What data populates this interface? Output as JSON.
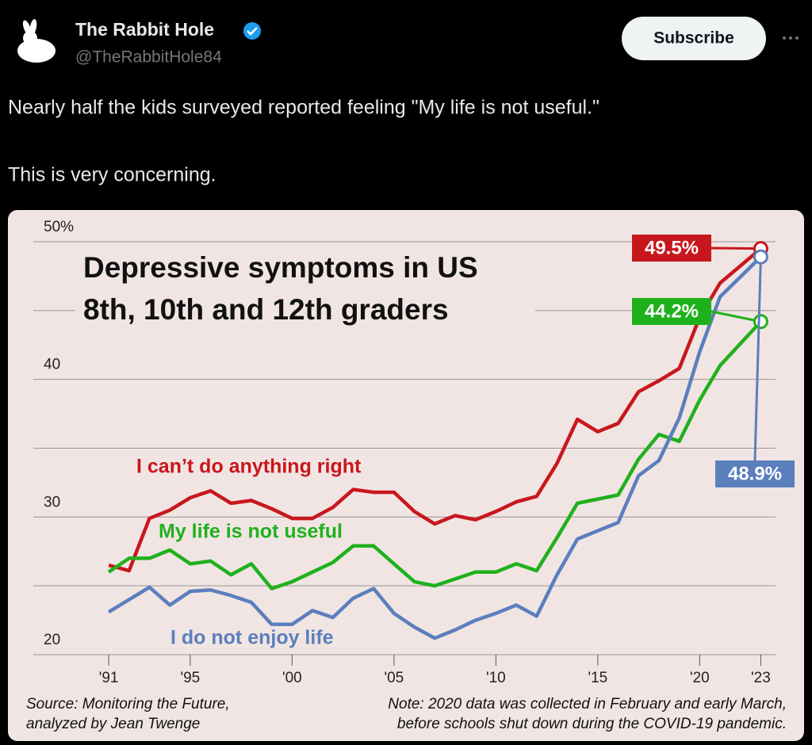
{
  "post": {
    "author": "The Rabbit Hole",
    "handle": "@TheRabbitHole84",
    "button": "Subscribe",
    "text": [
      "Nearly half the kids surveyed reported feeling \"My life is not useful.\"",
      "This is very concerning."
    ]
  },
  "chart_data": {
    "type": "line",
    "title": [
      "Depressive symptoms in US",
      "8th, 10th and 12th graders"
    ],
    "source": [
      "Source: Monitoring the Future,",
      "analyzed by Jean Twenge"
    ],
    "note": [
      "Note: 2020 data was collected in February and early March,",
      "before schools shut down during the COVID-19 pandemic."
    ],
    "x": [
      1991,
      1992,
      1993,
      1994,
      1995,
      1996,
      1997,
      1998,
      1999,
      2000,
      2001,
      2002,
      2003,
      2004,
      2005,
      2006,
      2007,
      2008,
      2009,
      2010,
      2011,
      2012,
      2013,
      2014,
      2015,
      2016,
      2017,
      2018,
      2019,
      2020,
      2021,
      2023
    ],
    "series": [
      {
        "name": "I can’t do anything right",
        "color": "#c8171c",
        "values": [
          26.5,
          26.1,
          29.9,
          30.5,
          31.4,
          31.9,
          31.0,
          31.2,
          30.6,
          29.9,
          29.9,
          30.7,
          32.0,
          31.8,
          31.8,
          30.4,
          29.5,
          30.1,
          29.8,
          30.4,
          31.1,
          31.5,
          33.9,
          37.1,
          36.2,
          36.8,
          39.1,
          39.9,
          40.8,
          44.5,
          47.0,
          49.5
        ],
        "value_labels": [
          null,
          null,
          null,
          null,
          null,
          null,
          null,
          null,
          null,
          null,
          null,
          null,
          null,
          null,
          null,
          null,
          null,
          null,
          null,
          null,
          null,
          null,
          null,
          null,
          null,
          null,
          null,
          null,
          null,
          null,
          null,
          "49.5%"
        ]
      },
      {
        "name": "My life is not useful",
        "color": "#1fb11c",
        "values": [
          26.0,
          27.0,
          27.0,
          27.6,
          26.6,
          26.8,
          25.8,
          26.6,
          24.8,
          25.3,
          26.0,
          26.7,
          27.9,
          27.9,
          26.6,
          25.3,
          25.0,
          25.5,
          26.0,
          26.0,
          26.6,
          26.1,
          28.5,
          31.0,
          31.3,
          31.6,
          34.2,
          36.0,
          35.5,
          38.5,
          41.0,
          44.2
        ],
        "value_labels": [
          null,
          null,
          null,
          null,
          null,
          null,
          null,
          null,
          null,
          null,
          null,
          null,
          null,
          null,
          null,
          null,
          null,
          null,
          null,
          null,
          null,
          null,
          null,
          null,
          null,
          null,
          null,
          null,
          null,
          null,
          null,
          "44.2%"
        ]
      },
      {
        "name": "I do not enjoy life",
        "color": "#5b7fbd",
        "values": [
          23.1,
          24.0,
          24.9,
          23.6,
          24.6,
          24.7,
          24.3,
          23.8,
          22.2,
          22.2,
          23.2,
          22.7,
          24.1,
          24.8,
          23.0,
          22.0,
          21.2,
          21.8,
          22.5,
          23.0,
          23.6,
          22.8,
          25.8,
          28.4,
          29.0,
          29.6,
          33.0,
          34.1,
          37.2,
          42.0,
          46.0,
          48.9
        ],
        "value_labels": [
          null,
          null,
          null,
          null,
          null,
          null,
          null,
          null,
          null,
          null,
          null,
          null,
          null,
          null,
          null,
          null,
          null,
          null,
          null,
          null,
          null,
          null,
          null,
          null,
          null,
          null,
          null,
          null,
          null,
          null,
          null,
          "48.9%"
        ]
      }
    ],
    "xlim": [
      1987.3,
      2023.8
    ],
    "xticks": [
      {
        "value": 1991,
        "label": "'91"
      },
      {
        "value": 1995,
        "label": "'95"
      },
      {
        "value": 2000,
        "label": "'00"
      },
      {
        "value": 2005,
        "label": "'05"
      },
      {
        "value": 2010,
        "label": "'10"
      },
      {
        "value": 2015,
        "label": "'15"
      },
      {
        "value": 2020,
        "label": "'20"
      },
      {
        "value": 2023,
        "label": "'23"
      }
    ],
    "ylim": [
      20,
      50
    ],
    "yticks": [
      20,
      30,
      40,
      {
        "value": 50,
        "label": "50%"
      }
    ],
    "ygrid": [
      20,
      25,
      30,
      35,
      40,
      45,
      50
    ],
    "grid": true
  }
}
